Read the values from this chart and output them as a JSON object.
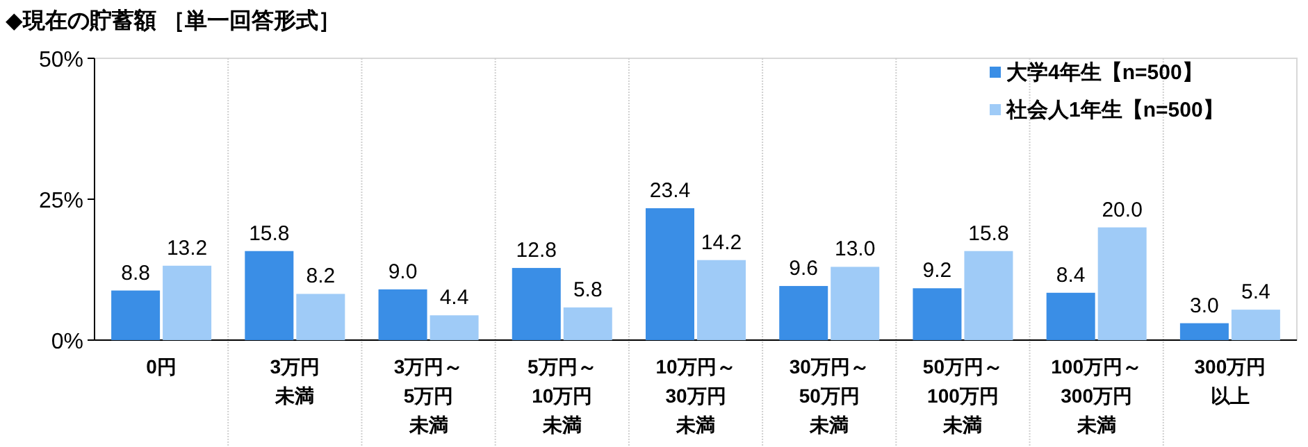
{
  "chart_data": {
    "type": "bar",
    "title": "◆現在の貯蓄額 ［単一回答形式］",
    "categories": [
      "0円",
      "3万円未満",
      "3万円～5万円未満",
      "5万円～10万円未満",
      "10万円～30万円未満",
      "30万円～50万円未満",
      "50万円～100万円未満",
      "100万円～300万円未満",
      "300万円以上"
    ],
    "series": [
      {
        "name": "大学4年生【n=500】",
        "color": "#3a8ee6",
        "values": [
          8.8,
          15.8,
          9.0,
          12.8,
          23.4,
          9.6,
          9.2,
          8.4,
          3.0
        ],
        "value_labels": [
          "8.8",
          "15.8",
          "9.0",
          "12.8",
          "23.4",
          "9.6",
          "9.2",
          "8.4",
          "3.0"
        ]
      },
      {
        "name": "社会人1年生【n=500】",
        "color": "#9fcbf7",
        "values": [
          13.2,
          8.2,
          4.4,
          5.8,
          14.2,
          13.0,
          15.8,
          20.0,
          5.4
        ],
        "value_labels": [
          "13.2",
          "8.2",
          "4.4",
          "5.8",
          "14.2",
          "13.0",
          "15.8",
          "20.0",
          "5.4"
        ]
      }
    ],
    "ylim": [
      0,
      50
    ],
    "yticks": [
      {
        "value": 0,
        "label": "0%"
      },
      {
        "value": 25,
        "label": "25%"
      },
      {
        "value": 50,
        "label": "50%"
      }
    ],
    "legend": "top right"
  }
}
